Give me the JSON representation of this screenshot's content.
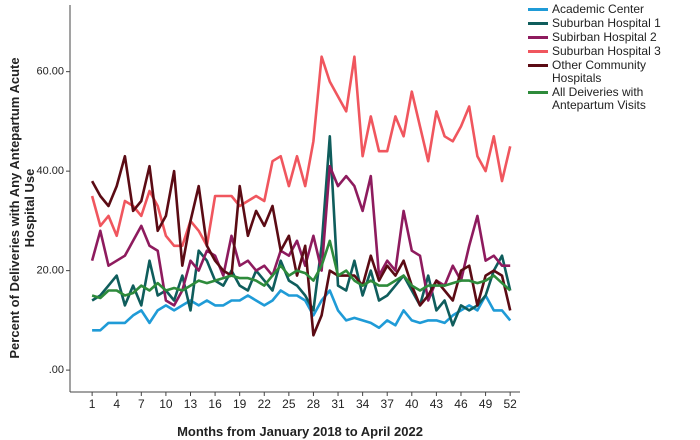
{
  "chart_data": {
    "type": "line",
    "x_label": "Months from January 2018 to April 2022",
    "y_label": "Percent of Deliveries with Any Antepartum Acute Hospital Use",
    "x": [
      1,
      2,
      3,
      4,
      5,
      6,
      7,
      8,
      9,
      10,
      11,
      12,
      13,
      14,
      15,
      16,
      17,
      18,
      19,
      20,
      21,
      22,
      23,
      24,
      25,
      26,
      27,
      28,
      29,
      30,
      31,
      32,
      33,
      34,
      35,
      36,
      37,
      38,
      39,
      40,
      41,
      42,
      43,
      44,
      45,
      46,
      47,
      48,
      49,
      50,
      51,
      52
    ],
    "xlim": [
      -1.7,
      53.2
    ],
    "xticks": [
      1,
      4,
      7,
      10,
      13,
      16,
      19,
      22,
      25,
      28,
      31,
      34,
      37,
      40,
      43,
      46,
      49,
      52
    ],
    "ylim": [
      -4.4,
      73.4
    ],
    "yticks": [
      {
        "value": 0,
        "label": ".00"
      },
      {
        "value": 20,
        "label": "20.00"
      },
      {
        "value": 40,
        "label": "40.00"
      },
      {
        "value": 60,
        "label": "60.00"
      }
    ],
    "legend": "right",
    "series": [
      {
        "name": "Academic Center",
        "color": "#1f9bd7",
        "values": [
          8,
          8,
          9.5,
          9.5,
          9.5,
          11,
          12,
          9.5,
          12,
          13,
          12,
          13,
          14,
          13,
          14,
          13,
          13,
          14,
          14,
          15,
          14,
          13,
          14,
          16,
          15,
          15,
          14,
          11,
          14,
          16,
          12,
          10,
          10.5,
          10,
          9.5,
          8.5,
          10,
          9,
          12,
          10,
          9.5,
          10,
          10,
          9.5,
          11,
          12,
          13,
          12,
          15,
          12,
          12,
          10
        ]
      },
      {
        "name": "Suburban Hospital 1",
        "color": "#0f5d5c",
        "values": [
          14,
          15,
          17,
          19,
          13,
          17,
          13,
          22,
          15,
          16,
          14,
          19,
          12,
          24,
          22,
          18,
          17,
          20,
          17,
          16,
          20,
          18,
          16,
          22,
          18,
          17,
          15,
          12,
          25,
          47,
          17,
          16,
          22,
          15,
          20,
          14,
          15,
          17,
          19,
          16,
          13,
          19,
          12,
          14,
          9,
          13,
          12,
          13,
          15,
          20,
          23,
          16
        ]
      },
      {
        "name": "Subirban Hospital 2",
        "color": "#8e1b5e",
        "values": [
          22,
          28,
          21,
          22,
          23,
          26,
          29,
          25,
          24,
          14,
          13,
          16,
          22,
          20,
          24,
          23,
          19,
          27,
          21,
          22,
          20,
          21,
          19,
          24,
          23,
          26,
          21,
          27,
          20,
          41,
          37,
          39,
          37,
          32,
          39,
          19,
          22,
          20,
          32,
          24,
          23,
          14,
          18,
          17,
          21,
          18,
          25,
          31,
          22,
          23,
          21,
          21
        ]
      },
      {
        "name": "Suburban Hospital 3",
        "color": "#f0565e",
        "values": [
          35,
          29,
          31,
          27,
          34,
          33,
          31,
          36,
          33,
          27,
          25,
          25,
          30,
          28,
          25,
          35,
          35,
          35,
          33,
          34,
          35,
          34,
          42,
          43,
          37,
          43,
          37,
          46,
          63,
          58,
          55,
          52,
          63,
          43,
          51,
          44,
          44,
          51,
          47,
          56,
          49,
          42,
          52,
          47,
          46,
          49,
          53,
          43,
          40,
          47,
          38,
          45
        ]
      },
      {
        "name": "Other Community Hospitals",
        "color": "#5b0b14",
        "values": [
          38,
          35,
          33,
          37,
          43,
          32,
          34,
          41,
          28,
          31,
          40,
          21,
          30,
          37,
          25,
          22,
          20,
          19,
          37,
          27,
          32,
          29,
          33,
          24,
          27,
          19,
          25,
          7,
          11,
          20,
          19,
          19,
          19,
          17,
          23,
          18,
          21,
          19,
          22,
          17,
          13,
          15,
          18,
          16,
          14,
          20,
          21,
          13,
          19,
          20,
          19,
          12
        ]
      },
      {
        "name": "All Deiveries with Antepartum Visits",
        "color": "#2e8b3b",
        "values": [
          15,
          14.5,
          16,
          16,
          15,
          15.5,
          17,
          16,
          17.5,
          16,
          16.5,
          16,
          17,
          18,
          17.5,
          18,
          18.5,
          19,
          18.5,
          18.5,
          18,
          17,
          19,
          21,
          19,
          20,
          19.5,
          18,
          21,
          26,
          19,
          20,
          18,
          17,
          18,
          17,
          17,
          18,
          19,
          17,
          16,
          17,
          17,
          17,
          17.5,
          18,
          18,
          17.5,
          18,
          19,
          17.5,
          16
        ]
      }
    ]
  }
}
